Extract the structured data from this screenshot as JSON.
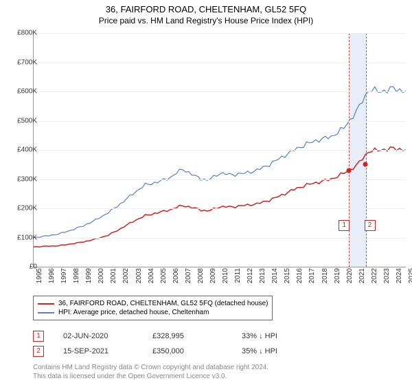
{
  "title": "36, FAIRFORD ROAD, CHELTENHAM, GL52 5FQ",
  "subtitle": "Price paid vs. HM Land Registry's House Price Index (HPI)",
  "chart": {
    "type": "line",
    "background_color": "#ffffff",
    "grid_color": "#eeeeee",
    "axis_color": "#999999",
    "label_color": "#333333",
    "label_fontsize": 10,
    "title_fontsize": 13,
    "subtitle_fontsize": 12,
    "ylim": [
      0,
      800000
    ],
    "ytick_step": 100000,
    "yticks": [
      "£0",
      "£100K",
      "£200K",
      "£300K",
      "£400K",
      "£500K",
      "£600K",
      "£700K",
      "£800K"
    ],
    "xlim": [
      1995,
      2025
    ],
    "xticks": [
      "1995",
      "1996",
      "1997",
      "1998",
      "1999",
      "2000",
      "2001",
      "2002",
      "2003",
      "2004",
      "2005",
      "2006",
      "2007",
      "2008",
      "2009",
      "2010",
      "2011",
      "2012",
      "2013",
      "2014",
      "2015",
      "2016",
      "2017",
      "2018",
      "2019",
      "2020",
      "2021",
      "2022",
      "2023",
      "2024",
      "2025"
    ],
    "series": [
      {
        "name": "36, FAIRFORD ROAD, CHELTENHAM, GL52 5FQ (detached house)",
        "color": "#d42020",
        "line_width": 1.5,
        "values": [
          68000,
          70000,
          72000,
          78000,
          85000,
          95000,
          108000,
          130000,
          155000,
          175000,
          185000,
          195000,
          210000,
          200000,
          190000,
          205000,
          205000,
          210000,
          215000,
          228000,
          245000,
          265000,
          280000,
          290000,
          300000,
          320000,
          345000,
          395000,
          400000,
          405000,
          400000
        ]
      },
      {
        "name": "HPI: Average price, detached house, Cheltenham",
        "color": "#5a7fc4",
        "line_width": 1.2,
        "values": [
          100000,
          105000,
          112000,
          125000,
          140000,
          160000,
          185000,
          215000,
          250000,
          280000,
          290000,
          305000,
          335000,
          310000,
          295000,
          320000,
          315000,
          320000,
          330000,
          350000,
          375000,
          400000,
          420000,
          435000,
          445000,
          475000,
          530000,
          605000,
          600000,
          610000,
          600000
        ]
      }
    ],
    "highlight_band": {
      "start": 2020.42,
      "end": 2021.71
    },
    "data_points": [
      {
        "marker": "1",
        "marker_color": "#d42020",
        "date": "02-JUN-2020",
        "price": "£328,995",
        "delta": "33% ↓ HPI",
        "year": 2020.42,
        "value": 328995
      },
      {
        "marker": "2",
        "marker_color": "#d42020",
        "date": "15-SEP-2021",
        "price": "£350,000",
        "delta": "35% ↓ HPI",
        "year": 2021.71,
        "value": 350000
      }
    ]
  },
  "footnote_line1": "Contains HM Land Registry data © Crown copyright and database right 2024.",
  "footnote_line2": "This data is licensed under the Open Government Licence v3.0."
}
